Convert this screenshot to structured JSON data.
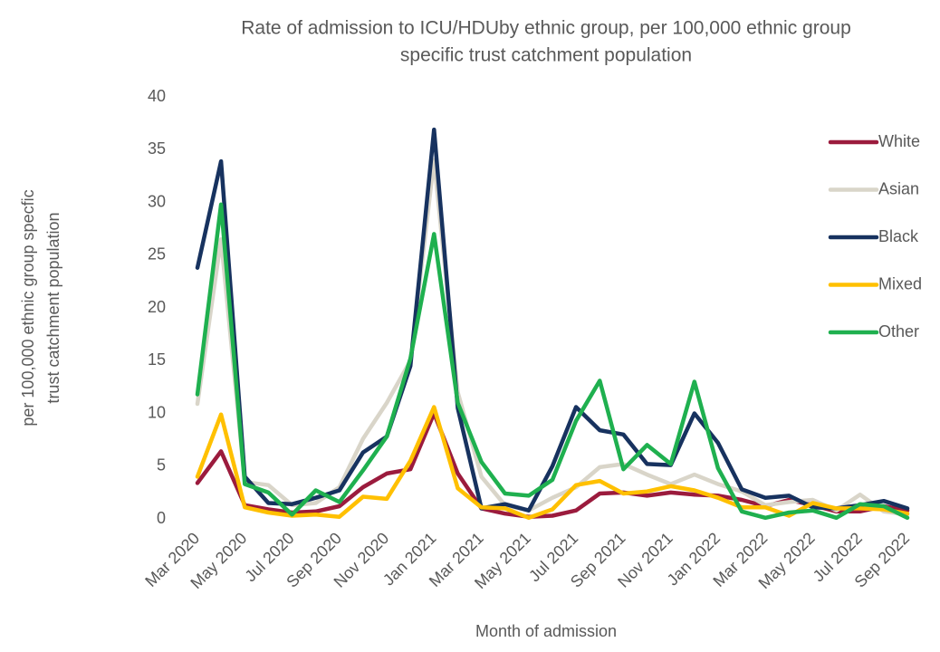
{
  "chart_data": {
    "type": "line",
    "title": [
      "Rate of admission to ICU/HDUby ethnic group, per 100,000 ethnic group",
      "specific trust catchment population"
    ],
    "x_label": "Month of admission",
    "y_label": [
      "per 100,000 ethnic group specfic",
      "trust catchment  population"
    ],
    "categories": [
      "Mar 2020",
      null,
      "May 2020",
      null,
      "Jul 2020",
      null,
      "Sep 2020",
      null,
      "Nov 2020",
      null,
      "Jan 2021",
      null,
      "Mar 2021",
      null,
      "May 2021",
      null,
      "Jul 2021",
      null,
      "Sep 2021",
      null,
      "Nov 2021",
      null,
      "Jan 2022",
      null,
      "Mar 2022",
      null,
      "May 2022",
      null,
      "Jul 2022",
      null,
      "Sep 2022"
    ],
    "ylim": [
      0,
      40
    ],
    "yticks": [
      0,
      5,
      10,
      15,
      20,
      25,
      30,
      35,
      40
    ],
    "grid": false,
    "legend": "right",
    "series": [
      {
        "name": "White",
        "color": "#9b1b3d",
        "values": [
          3.4,
          6.4,
          1.3,
          0.9,
          0.6,
          0.7,
          1.2,
          3.0,
          4.3,
          4.7,
          10.0,
          4.3,
          1.0,
          0.5,
          0.2,
          0.3,
          0.8,
          2.4,
          2.5,
          2.2,
          2.5,
          2.3,
          2.2,
          1.8,
          1.2,
          1.8,
          1.3,
          0.7,
          0.7,
          1.2,
          0.8
        ]
      },
      {
        "name": "Asian",
        "color": "#d9d5c9",
        "values": [
          10.9,
          26.5,
          3.5,
          3.2,
          1.3,
          1.5,
          3.0,
          7.6,
          11.0,
          15.0,
          34.0,
          12.0,
          4.0,
          1.3,
          0.8,
          2.0,
          3.0,
          4.9,
          5.2,
          4.2,
          3.3,
          4.2,
          3.3,
          2.6,
          1.3,
          1.6,
          1.8,
          0.8,
          2.3,
          0.7,
          0.4
        ]
      },
      {
        "name": "Black",
        "color": "#17325f",
        "values": [
          23.8,
          33.9,
          4.0,
          1.5,
          1.4,
          2.0,
          2.7,
          6.3,
          7.8,
          14.5,
          36.9,
          10.5,
          1.0,
          1.4,
          0.8,
          5.0,
          10.6,
          8.4,
          8.0,
          5.2,
          5.1,
          10.0,
          7.2,
          2.8,
          2.0,
          2.2,
          1.1,
          1.0,
          1.3,
          1.7,
          1.0
        ]
      },
      {
        "name": "Mixed",
        "color": "#ffc000",
        "values": [
          4.0,
          9.9,
          1.1,
          0.6,
          0.3,
          0.4,
          0.2,
          2.1,
          1.9,
          5.5,
          10.6,
          2.9,
          1.1,
          1.0,
          0.1,
          0.9,
          3.2,
          3.6,
          2.4,
          2.6,
          3.1,
          2.7,
          2.0,
          1.1,
          1.1,
          0.3,
          1.5,
          1.0,
          1.0,
          0.9,
          0.5
        ]
      },
      {
        "name": "Other",
        "color": "#1fb04f",
        "values": [
          11.8,
          29.8,
          3.3,
          2.5,
          0.4,
          2.7,
          1.6,
          4.6,
          7.8,
          15.2,
          27.0,
          11.0,
          5.4,
          2.4,
          2.2,
          3.7,
          9.3,
          13.1,
          4.7,
          7.0,
          5.2,
          13.0,
          4.8,
          0.7,
          0.1,
          0.6,
          0.8,
          0.1,
          1.4,
          1.2,
          0.1
        ]
      }
    ]
  }
}
